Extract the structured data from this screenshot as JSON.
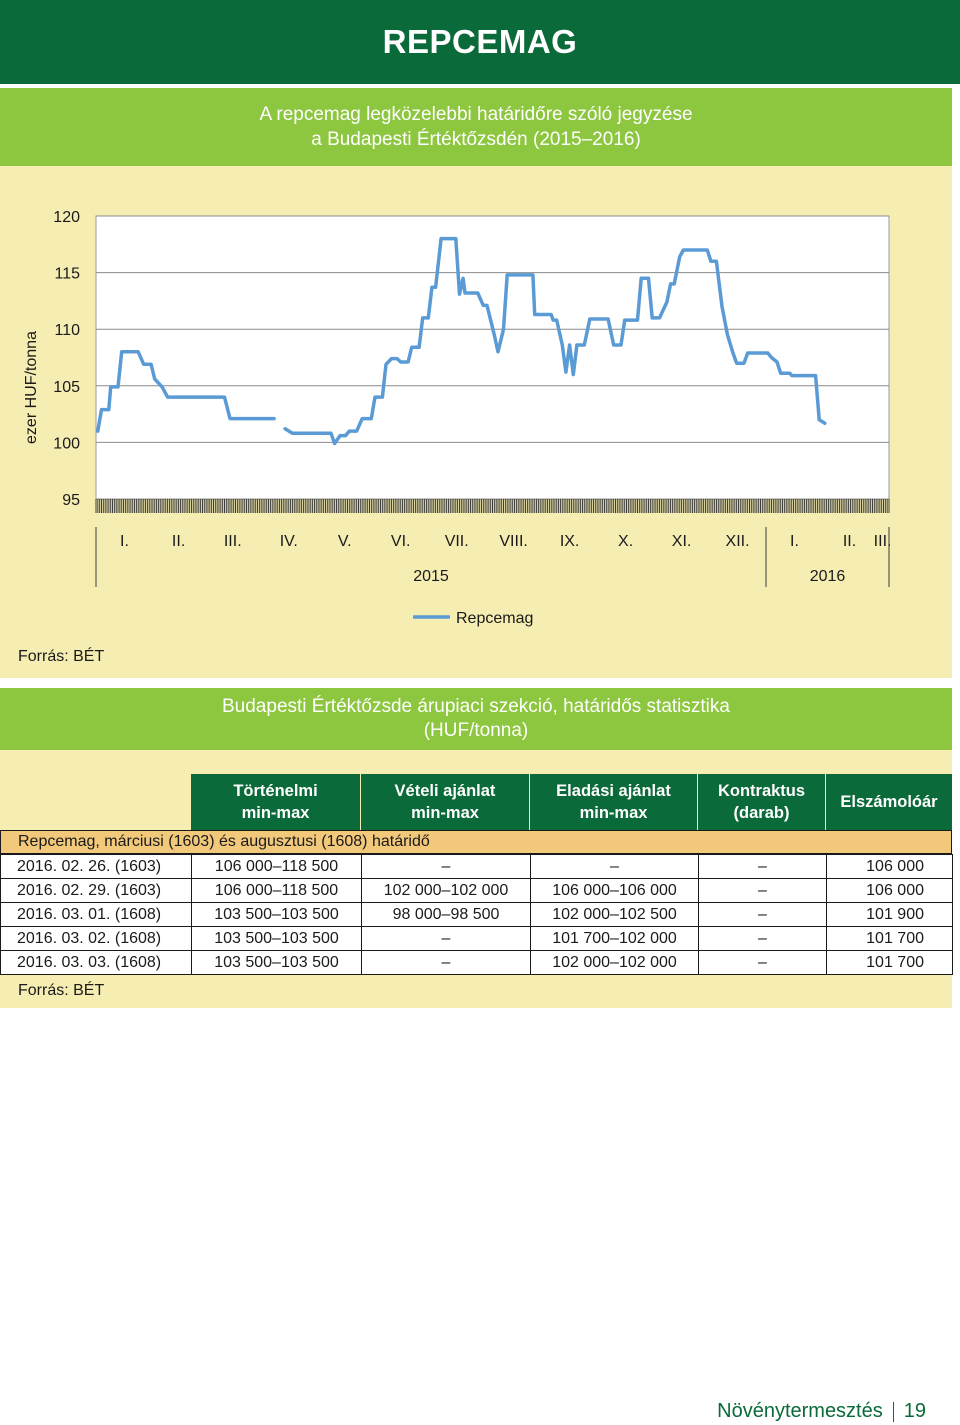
{
  "page_title": "REPCEMAG",
  "chart_title_line1": "A repcemag legközelebbi határidőre szóló jegyzése",
  "chart_title_line2": "a Budapesti Értéktőzsdén (2015–2016)",
  "chart_source": "Forrás: BÉT",
  "colors": {
    "dark_green": "#0b6a39",
    "light_green": "#8dc63f",
    "panel_bg": "#f5edb2",
    "section_row": "#f2c87a",
    "line": "#5b9bd5"
  },
  "chart_data": {
    "type": "line",
    "ylabel": "ezer HUF/tonna",
    "ylim": [
      95,
      120
    ],
    "yticks": [
      95,
      100,
      105,
      110,
      115,
      120
    ],
    "month_labels": [
      "I.",
      "II.",
      "III.",
      "IV.",
      "V.",
      "VI.",
      "VII.",
      "VIII.",
      "IX.",
      "X.",
      "XI.",
      "XII.",
      "I.",
      "II.",
      "III."
    ],
    "year_labels": [
      "2015",
      "2016"
    ],
    "x_start": "2015-01-01",
    "x_end": "2016-03-08",
    "legend": "Repcemag",
    "legend_position": "bottom",
    "series": [
      {
        "name": "Repcemag",
        "segments": [
          [
            [
              "2015-01-02",
              101
            ],
            [
              "2015-01-04",
              102.9
            ],
            [
              "2015-01-08",
              102.9
            ],
            [
              "2015-01-09",
              104.9
            ],
            [
              "2015-01-13",
              104.9
            ],
            [
              "2015-01-15",
              108
            ],
            [
              "2015-01-24",
              108
            ],
            [
              "2015-01-27",
              106.9
            ],
            [
              "2015-01-31",
              106.9
            ],
            [
              "2015-02-02",
              105.6
            ],
            [
              "2015-02-06",
              104.9
            ],
            [
              "2015-02-09",
              104
            ],
            [
              "2015-03-12",
              104
            ],
            [
              "2015-03-15",
              102.1
            ],
            [
              "2015-04-08",
              102.1
            ]
          ],
          [
            [
              "2015-04-14",
              101.2
            ],
            [
              "2015-04-18",
              100.8
            ],
            [
              "2015-05-09",
              100.8
            ],
            [
              "2015-05-11",
              99.9
            ],
            [
              "2015-05-14",
              100.6
            ],
            [
              "2015-05-17",
              100.6
            ],
            [
              "2015-05-19",
              101
            ],
            [
              "2015-05-23",
              101
            ],
            [
              "2015-05-26",
              102.1
            ],
            [
              "2015-05-31",
              102.1
            ],
            [
              "2015-06-02",
              104
            ],
            [
              "2015-06-06",
              104
            ],
            [
              "2015-06-08",
              106.9
            ],
            [
              "2015-06-11",
              107.4
            ],
            [
              "2015-06-14",
              107.4
            ],
            [
              "2015-06-16",
              107.1
            ],
            [
              "2015-06-20",
              107.1
            ],
            [
              "2015-06-22",
              108.4
            ],
            [
              "2015-06-26",
              108.4
            ],
            [
              "2015-06-28",
              111
            ],
            [
              "2015-07-01",
              111
            ],
            [
              "2015-07-03",
              113.7
            ],
            [
              "2015-07-05",
              113.7
            ],
            [
              "2015-07-08",
              118
            ],
            [
              "2015-07-16",
              118
            ],
            [
              "2015-07-18",
              113.1
            ],
            [
              "2015-07-20",
              114.5
            ],
            [
              "2015-07-21",
              113.2
            ],
            [
              "2015-07-28",
              113.2
            ],
            [
              "2015-07-31",
              112.1
            ],
            [
              "2015-08-02",
              112.1
            ],
            [
              "2015-08-06",
              109.5
            ],
            [
              "2015-08-08",
              108
            ],
            [
              "2015-08-11",
              110
            ],
            [
              "2015-08-13",
              114.8
            ],
            [
              "2015-08-27",
              114.8
            ],
            [
              "2015-08-28",
              111.3
            ],
            [
              "2015-09-06",
              111.3
            ],
            [
              "2015-09-07",
              110.8
            ],
            [
              "2015-09-09",
              110.8
            ],
            [
              "2015-09-12",
              108.6
            ],
            [
              "2015-09-14",
              106.2
            ],
            [
              "2015-09-16",
              108.6
            ],
            [
              "2015-09-18",
              106
            ],
            [
              "2015-09-20",
              108.6
            ],
            [
              "2015-09-24",
              108.6
            ],
            [
              "2015-09-27",
              110.9
            ],
            [
              "2015-10-07",
              110.9
            ],
            [
              "2015-10-10",
              108.6
            ],
            [
              "2015-10-14",
              108.6
            ],
            [
              "2015-10-16",
              110.8
            ],
            [
              "2015-10-23",
              110.8
            ],
            [
              "2015-10-25",
              114.5
            ],
            [
              "2015-10-29",
              114.5
            ],
            [
              "2015-10-31",
              111
            ],
            [
              "2015-11-04",
              111
            ],
            [
              "2015-11-08",
              112.4
            ],
            [
              "2015-11-10",
              114
            ],
            [
              "2015-11-12",
              114
            ],
            [
              "2015-11-15",
              116.4
            ],
            [
              "2015-11-17",
              117
            ],
            [
              "2015-11-30",
              117
            ],
            [
              "2015-12-02",
              116
            ],
            [
              "2015-12-05",
              116
            ],
            [
              "2015-12-08",
              112
            ],
            [
              "2015-12-11",
              109.5
            ],
            [
              "2015-12-14",
              107.9
            ],
            [
              "2015-12-16",
              107
            ],
            [
              "2015-12-20",
              107
            ],
            [
              "2015-12-22",
              107.9
            ],
            [
              "2016-01-02",
              107.9
            ],
            [
              "2016-01-04",
              107.5
            ],
            [
              "2016-01-07",
              107.1
            ],
            [
              "2016-01-09",
              106.1
            ],
            [
              "2016-01-14",
              106.1
            ],
            [
              "2016-01-15",
              105.9
            ],
            [
              "2016-01-28",
              105.9
            ],
            [
              "2016-01-30",
              102
            ],
            [
              "2016-02-02",
              101.7
            ]
          ]
        ]
      }
    ]
  },
  "stat_title_line1": "Budapesti Értéktőzsde árupiaci szekció, határidős statisztika",
  "stat_title_line2": "(HUF/tonna)",
  "table": {
    "headers": [
      {
        "line1": "Történelmi",
        "line2": "min-max"
      },
      {
        "line1": "Vételi ajánlat",
        "line2": "min-max"
      },
      {
        "line1": "Eladási ajánlat",
        "line2": "min-max"
      },
      {
        "line1": "Kontraktus",
        "line2": "(darab)"
      },
      {
        "line1": "Elszámolóár",
        "line2": ""
      }
    ],
    "section_label": "Repcemag, márciusi (1603) és augusztusi (1608) határidő",
    "rows": [
      [
        "2016. 02. 26. (1603)",
        "106 000–118 500",
        "–",
        "–",
        "–",
        "106 000"
      ],
      [
        "2016. 02. 29. (1603)",
        "106 000–118 500",
        "102 000–102 000",
        "106 000–106 000",
        "–",
        "106 000"
      ],
      [
        "2016. 03. 01. (1608)",
        "103 500–103 500",
        "98 000–98 500",
        "102 000–102 500",
        "–",
        "101 900"
      ],
      [
        "2016. 03. 02. (1608)",
        "103 500–103 500",
        "–",
        "101 700–102 000",
        "–",
        "101 700"
      ],
      [
        "2016. 03. 03. (1608)",
        "103 500–103 500",
        "–",
        "102 000–102 000",
        "–",
        "101 700"
      ]
    ]
  },
  "table_source": "Forrás: BÉT",
  "footer": {
    "section": "Növénytermesztés",
    "page": "19"
  }
}
